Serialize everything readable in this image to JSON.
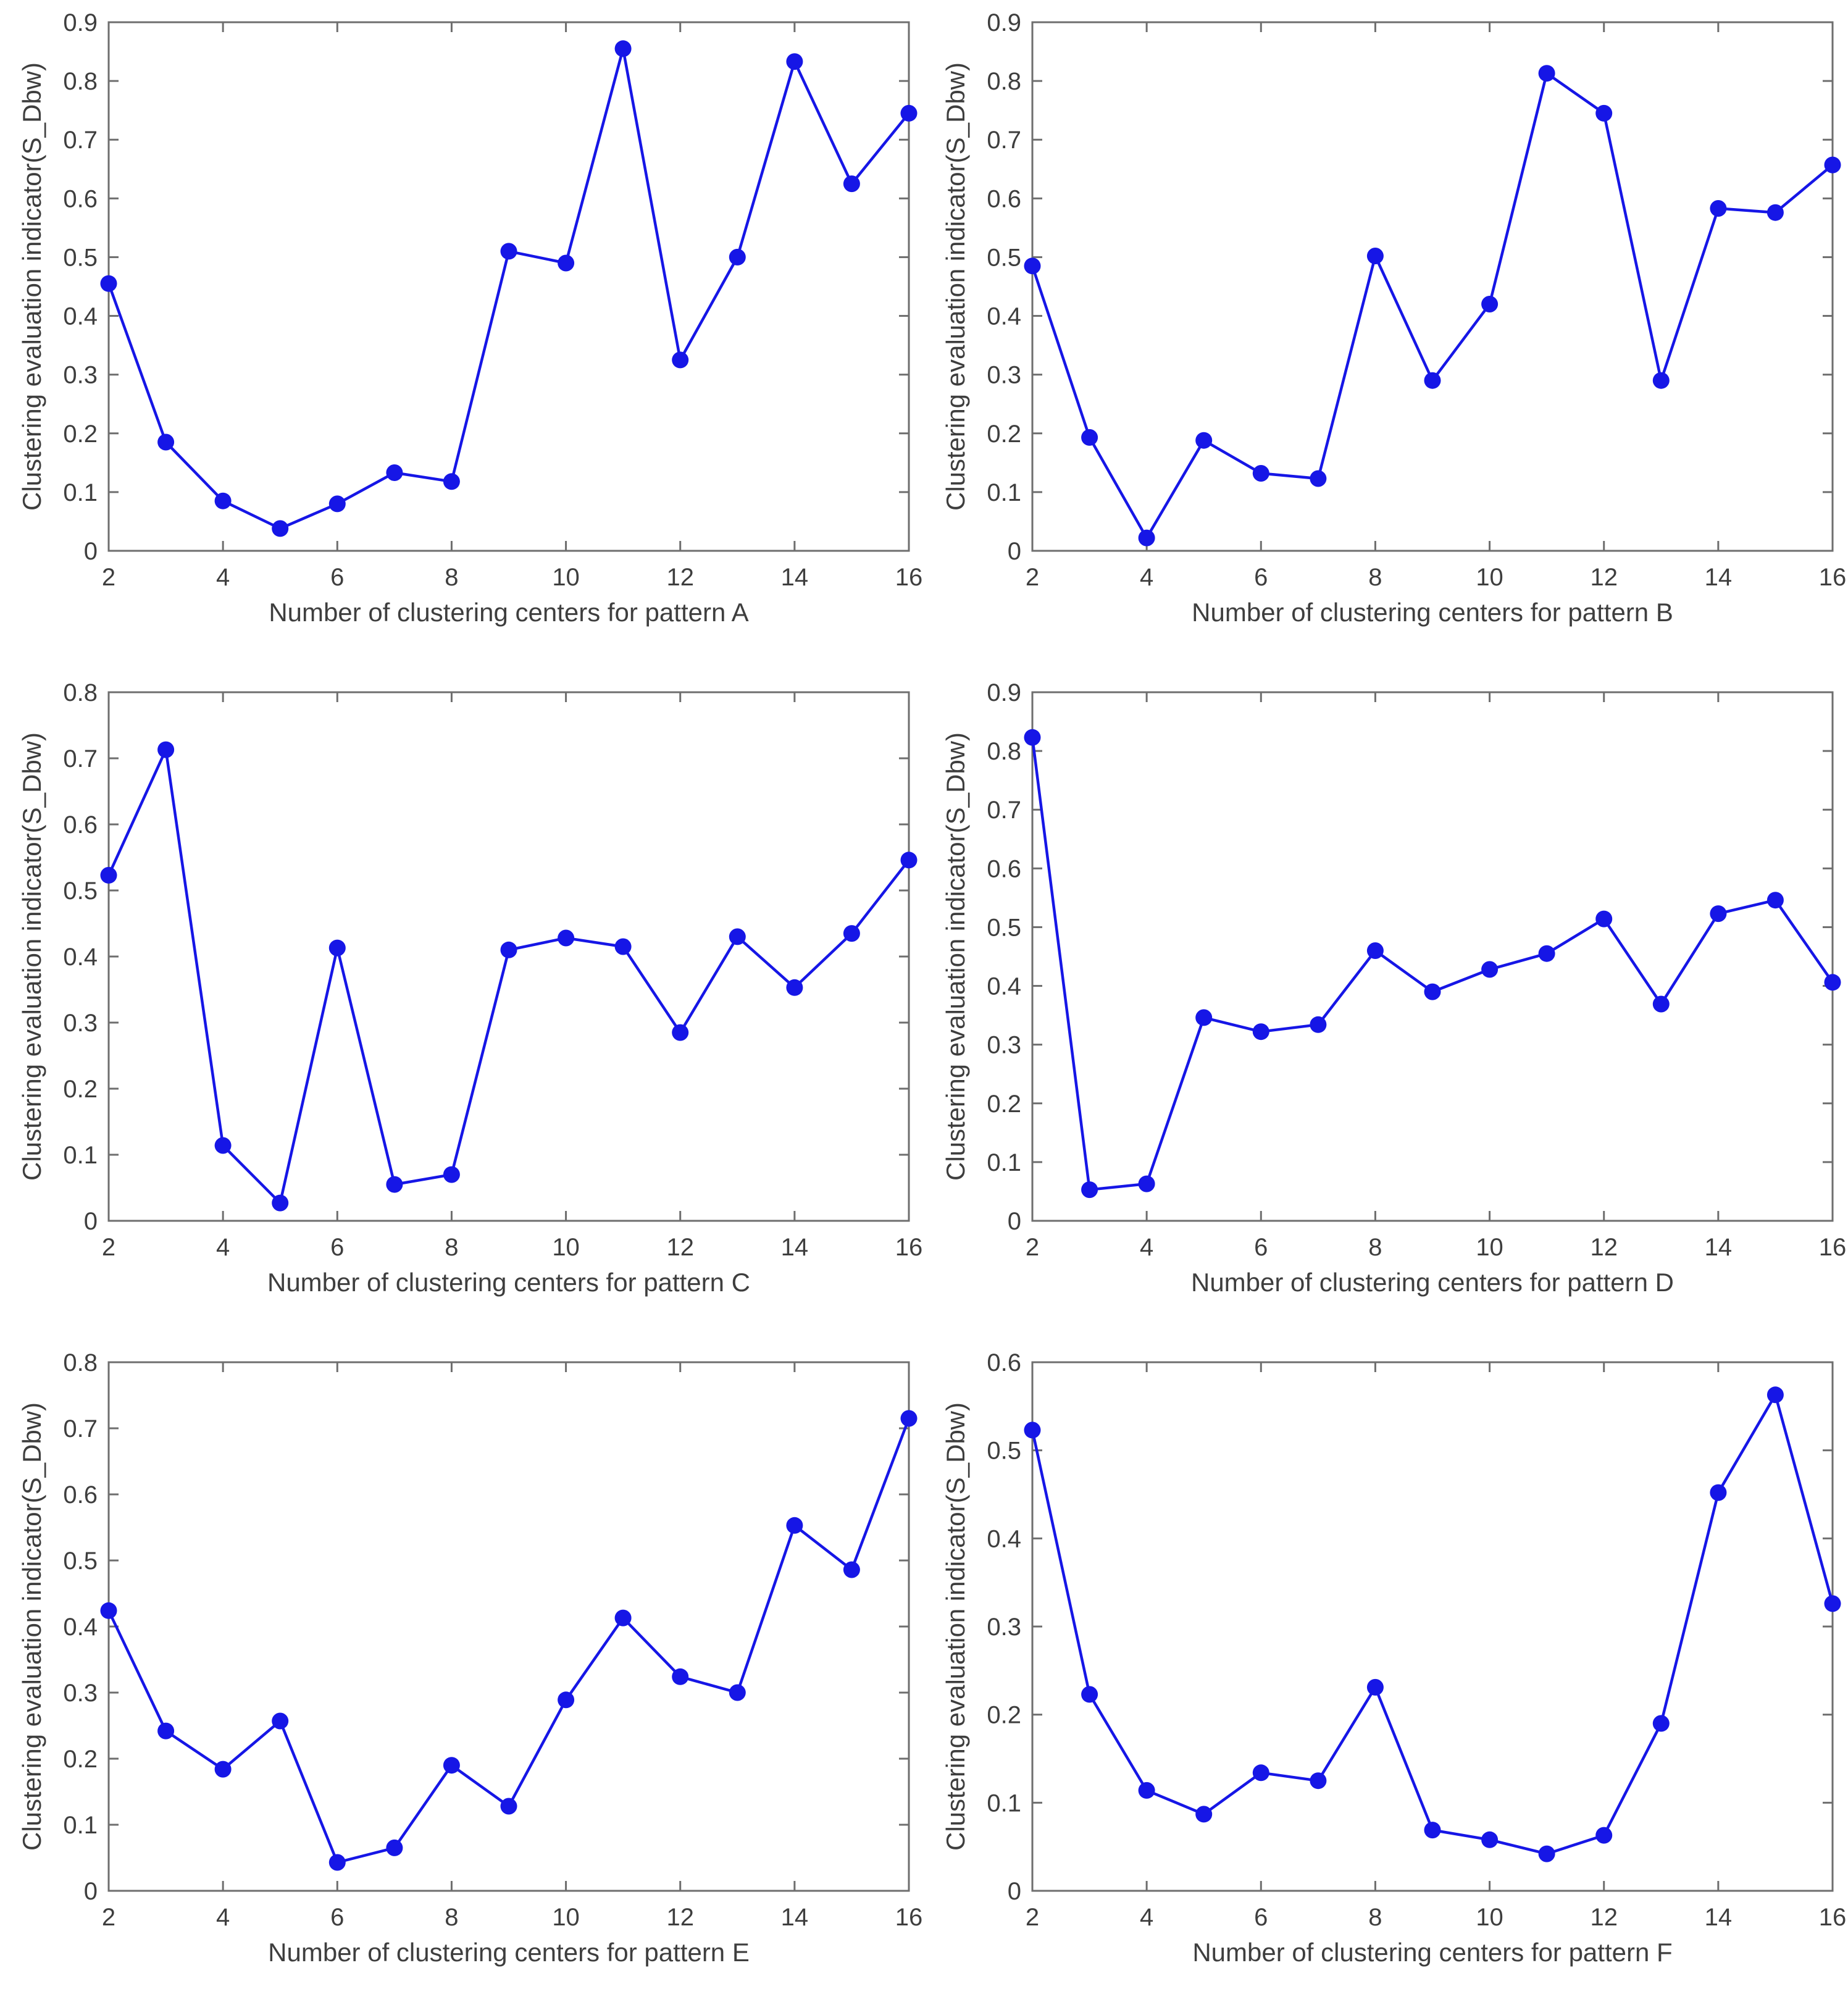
{
  "colors": {
    "line": "#1616E6",
    "axis": "#6E6E6E",
    "text": "#3E3E3E"
  },
  "chart_data": [
    {
      "type": "line",
      "pattern": "A",
      "xlabel": "Number of clustering centers for pattern A",
      "ylabel": "Clustering evaluation indicator(S_Dbw)",
      "x": [
        2,
        3,
        4,
        5,
        6,
        7,
        8,
        9,
        10,
        11,
        12,
        13,
        14,
        15,
        16
      ],
      "y": [
        0.455,
        0.185,
        0.085,
        0.038,
        0.08,
        0.133,
        0.118,
        0.51,
        0.49,
        0.855,
        0.325,
        0.5,
        0.833,
        0.625,
        0.745
      ],
      "xlim": [
        2,
        16
      ],
      "ylim": [
        0,
        0.9
      ],
      "xticks": [
        2,
        4,
        6,
        8,
        10,
        12,
        14,
        16
      ],
      "yticks": [
        0,
        0.1,
        0.2,
        0.3,
        0.4,
        0.5,
        0.6,
        0.7,
        0.8,
        0.9
      ],
      "grid": false,
      "legend": null,
      "marker": "circle"
    },
    {
      "type": "line",
      "pattern": "B",
      "xlabel": "Number of clustering centers for pattern B",
      "ylabel": "Clustering evaluation indicator(S_Dbw)",
      "x": [
        2,
        3,
        4,
        5,
        6,
        7,
        8,
        9,
        10,
        11,
        12,
        13,
        14,
        15,
        16
      ],
      "y": [
        0.485,
        0.193,
        0.022,
        0.188,
        0.132,
        0.123,
        0.502,
        0.29,
        0.42,
        0.813,
        0.745,
        0.29,
        0.583,
        0.576,
        0.657
      ],
      "xlim": [
        2,
        16
      ],
      "ylim": [
        0,
        0.9
      ],
      "xticks": [
        2,
        4,
        6,
        8,
        10,
        12,
        14,
        16
      ],
      "yticks": [
        0,
        0.1,
        0.2,
        0.3,
        0.4,
        0.5,
        0.6,
        0.7,
        0.8,
        0.9
      ],
      "grid": false,
      "legend": null,
      "marker": "circle"
    },
    {
      "type": "line",
      "pattern": "C",
      "xlabel": "Number of clustering centers for pattern C",
      "ylabel": "Clustering evaluation indicator(S_Dbw)",
      "x": [
        2,
        3,
        4,
        5,
        6,
        7,
        8,
        9,
        10,
        11,
        12,
        13,
        14,
        15,
        16
      ],
      "y": [
        0.523,
        0.713,
        0.114,
        0.027,
        0.413,
        0.055,
        0.07,
        0.41,
        0.428,
        0.415,
        0.285,
        0.43,
        0.353,
        0.435,
        0.546
      ],
      "xlim": [
        2,
        16
      ],
      "ylim": [
        0,
        0.8
      ],
      "xticks": [
        2,
        4,
        6,
        8,
        10,
        12,
        14,
        16
      ],
      "yticks": [
        0,
        0.1,
        0.2,
        0.3,
        0.4,
        0.5,
        0.6,
        0.7,
        0.8
      ],
      "grid": false,
      "legend": null,
      "marker": "circle"
    },
    {
      "type": "line",
      "pattern": "D",
      "xlabel": "Number of clustering centers for pattern D",
      "ylabel": "Clustering evaluation indicator(S_Dbw)",
      "x": [
        2,
        3,
        4,
        5,
        6,
        7,
        8,
        9,
        10,
        11,
        12,
        13,
        14,
        15,
        16
      ],
      "y": [
        0.823,
        0.053,
        0.063,
        0.346,
        0.322,
        0.334,
        0.46,
        0.39,
        0.428,
        0.455,
        0.514,
        0.369,
        0.523,
        0.546,
        0.406
      ],
      "xlim": [
        2,
        16
      ],
      "ylim": [
        0,
        0.9
      ],
      "xticks": [
        2,
        4,
        6,
        8,
        10,
        12,
        14,
        16
      ],
      "yticks": [
        0,
        0.1,
        0.2,
        0.3,
        0.4,
        0.5,
        0.6,
        0.7,
        0.8,
        0.9
      ],
      "grid": false,
      "legend": null,
      "marker": "circle"
    },
    {
      "type": "line",
      "pattern": "E",
      "xlabel": "Number of clustering centers for pattern E",
      "ylabel": "Clustering evaluation indicator(S_Dbw)",
      "x": [
        2,
        3,
        4,
        5,
        6,
        7,
        8,
        9,
        10,
        11,
        12,
        13,
        14,
        15,
        16
      ],
      "y": [
        0.424,
        0.242,
        0.184,
        0.257,
        0.043,
        0.065,
        0.19,
        0.128,
        0.289,
        0.413,
        0.324,
        0.3,
        0.553,
        0.486,
        0.715
      ],
      "xlim": [
        2,
        16
      ],
      "ylim": [
        0,
        0.8
      ],
      "xticks": [
        2,
        4,
        6,
        8,
        10,
        12,
        14,
        16
      ],
      "yticks": [
        0,
        0.1,
        0.2,
        0.3,
        0.4,
        0.5,
        0.6,
        0.7,
        0.8
      ],
      "grid": false,
      "legend": null,
      "marker": "circle"
    },
    {
      "type": "line",
      "pattern": "F",
      "xlabel": "Number of clustering centers for pattern F",
      "ylabel": "Clustering evaluation indicator(S_Dbw)",
      "x": [
        2,
        3,
        4,
        5,
        6,
        7,
        8,
        9,
        10,
        11,
        12,
        13,
        14,
        15,
        16
      ],
      "y": [
        0.523,
        0.223,
        0.114,
        0.087,
        0.134,
        0.125,
        0.231,
        0.069,
        0.058,
        0.042,
        0.063,
        0.19,
        0.452,
        0.563,
        0.326
      ],
      "xlim": [
        2,
        16
      ],
      "ylim": [
        0,
        0.6
      ],
      "xticks": [
        2,
        4,
        6,
        8,
        10,
        12,
        14,
        16
      ],
      "yticks": [
        0,
        0.1,
        0.2,
        0.3,
        0.4,
        0.5,
        0.6
      ],
      "grid": false,
      "legend": null,
      "marker": "circle"
    }
  ]
}
